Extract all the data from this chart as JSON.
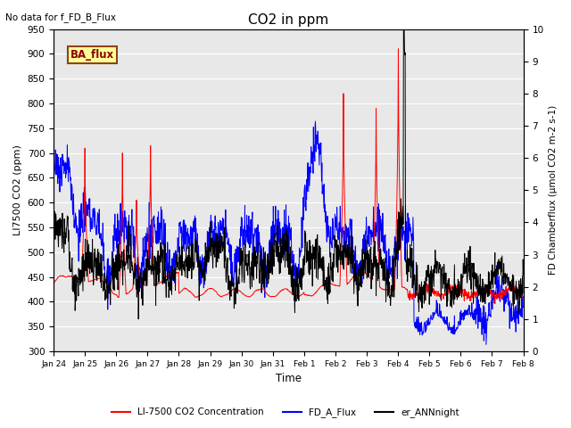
{
  "title": "CO2 in ppm",
  "top_left_text": "No data for f_FD_B_Flux",
  "box_label": "BA_flux",
  "xlabel": "Time",
  "ylabel_left": "LI7500 CO2 (ppm)",
  "ylabel_right": "FD Chamberflux (µmol CO2 m-2 s-1)",
  "ylim_left": [
    300,
    950
  ],
  "ylim_right": [
    0.0,
    10.0
  ],
  "yticks_left": [
    300,
    350,
    400,
    450,
    500,
    550,
    600,
    650,
    700,
    750,
    800,
    850,
    900,
    950
  ],
  "yticks_right": [
    0.0,
    1.0,
    2.0,
    3.0,
    4.0,
    5.0,
    6.0,
    7.0,
    8.0,
    9.0,
    10.0
  ],
  "xtick_labels": [
    "Jan 24",
    "Jan 25",
    "Jan 26",
    "Jan 27",
    "Jan 28",
    "Jan 29",
    "Jan 30",
    "Jan 31",
    "Feb 1",
    "Feb 2",
    "Feb 3",
    "Feb 4",
    "Feb 5",
    "Feb 6",
    "Feb 7",
    "Feb 8"
  ],
  "legend_entries": [
    {
      "label": "LI-7500 CO2 Concentration",
      "color": "red"
    },
    {
      "label": "FD_A_Flux",
      "color": "blue"
    },
    {
      "label": "er_ANNnight",
      "color": "black"
    }
  ],
  "color_red": "#FF0000",
  "color_blue": "#0000FF",
  "color_black": "#000000",
  "background_color": "#E8E8E8",
  "box_facecolor": "#FFFF99",
  "box_edgecolor": "#8B4513",
  "box_text_color": "#8B0000",
  "n_days": 15,
  "points_per_day": 96
}
